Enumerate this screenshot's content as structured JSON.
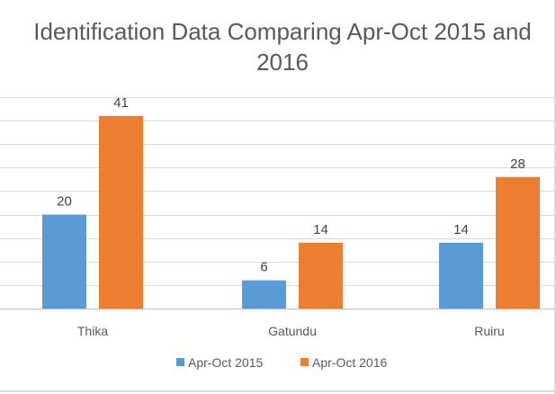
{
  "chart_data": {
    "type": "bar",
    "title": "Identification Data  Comparing Apr-Oct 2015 and 2016",
    "categories": [
      "Thika",
      "Gatundu",
      "Ruiru"
    ],
    "series": [
      {
        "name": "Apr-Oct 2015",
        "values": [
          20,
          6,
          14
        ],
        "color": "#5b9bd5"
      },
      {
        "name": "Apr-Oct 2016",
        "values": [
          41,
          14,
          28
        ],
        "color": "#ed7d31"
      }
    ],
    "ylim": [
      0,
      45
    ],
    "grid": true,
    "legend": "bottom"
  }
}
